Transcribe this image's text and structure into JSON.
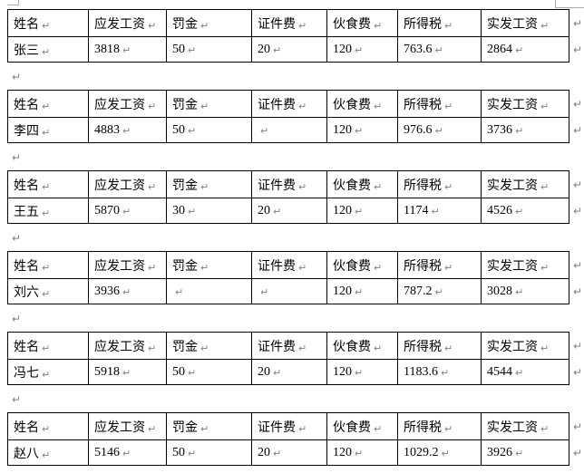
{
  "document": {
    "kind": "salary-slips",
    "formatting": {
      "cell_end_glyph": "↵",
      "paragraph_glyph": "↵",
      "mark_color": "#828282",
      "border_color": "#000000",
      "crop_mark_color": "#ababab",
      "background_color": "#ffffff"
    },
    "columns": [
      "姓名",
      "应发工资",
      "罚金",
      "证件费",
      "伙食费",
      "所得税",
      "实发工资"
    ],
    "tables": [
      {
        "cells": [
          "张三",
          "3818",
          "50",
          "20",
          "120",
          "763.6",
          "2864"
        ]
      },
      {
        "cells": [
          "李四",
          "4883",
          "50",
          "",
          "120",
          "976.6",
          "3736"
        ]
      },
      {
        "cells": [
          "王五",
          "5870",
          "30",
          "20",
          "120",
          "1174",
          "4526"
        ]
      },
      {
        "cells": [
          "刘六",
          "3936",
          "",
          "",
          "120",
          "787.2",
          "3028"
        ]
      },
      {
        "cells": [
          "冯七",
          "5918",
          "50",
          "20",
          "120",
          "1183.6",
          "4544"
        ]
      },
      {
        "cells": [
          "赵八",
          "5146",
          "50",
          "20",
          "120",
          "1029.2",
          "3926"
        ]
      }
    ]
  }
}
